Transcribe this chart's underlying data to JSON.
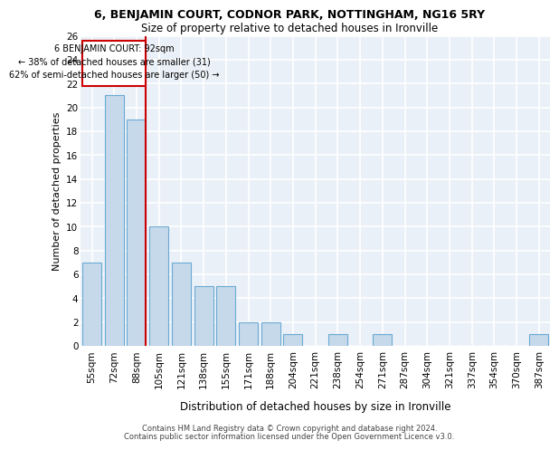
{
  "title": "6, BENJAMIN COURT, CODNOR PARK, NOTTINGHAM, NG16 5RY",
  "subtitle": "Size of property relative to detached houses in Ironville",
  "xlabel": "Distribution of detached houses by size in Ironville",
  "ylabel": "Number of detached properties",
  "bar_labels": [
    "55sqm",
    "72sqm",
    "88sqm",
    "105sqm",
    "121sqm",
    "138sqm",
    "155sqm",
    "171sqm",
    "188sqm",
    "204sqm",
    "221sqm",
    "238sqm",
    "254sqm",
    "271sqm",
    "287sqm",
    "304sqm",
    "321sqm",
    "337sqm",
    "354sqm",
    "370sqm",
    "387sqm"
  ],
  "bar_values": [
    7,
    21,
    19,
    10,
    7,
    5,
    5,
    2,
    2,
    1,
    0,
    1,
    0,
    1,
    0,
    0,
    0,
    0,
    0,
    0,
    1
  ],
  "bar_color": "#c6d9ea",
  "bar_edge_color": "#6aaad4",
  "property_label": "6 BENJAMIN COURT: 92sqm",
  "pct_smaller": 38,
  "count_smaller": 31,
  "pct_larger": 62,
  "count_larger": 50,
  "annotation_box_color": "#cc0000",
  "background_color": "#eaf0f7",
  "grid_color": "#ffffff",
  "ylim": [
    0,
    26
  ],
  "ytick_interval": 2,
  "footer_line1": "Contains HM Land Registry data © Crown copyright and database right 2024.",
  "footer_line2": "Contains public sector information licensed under the Open Government Licence v3.0."
}
